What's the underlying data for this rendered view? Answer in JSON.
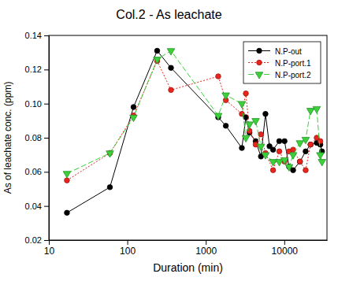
{
  "chart_data": {
    "type": "line",
    "title": "Col.2 - As leachate",
    "x_label": "Duration (min)",
    "y_label": "As of leachate conc. (ppm)",
    "log": "x",
    "grid": false,
    "legend": "top-right",
    "xlim": [
      10,
      35000
    ],
    "xticks": [
      10,
      100,
      1000,
      10000
    ],
    "ylim": [
      0.02,
      0.14
    ],
    "yticks": [
      0.02,
      0.04,
      0.06,
      0.08,
      {
        "value": 0.1,
        "label": "0.10"
      },
      0.12,
      0.14
    ],
    "series": [
      {
        "name": "N.P-out",
        "color": "#000000",
        "marker": "circle",
        "line_style": "solid",
        "x": [
          17,
          60,
          120,
          240,
          360,
          1440,
          1800,
          2880,
          3240,
          3600,
          4320,
          5040,
          5760,
          6480,
          7200,
          8640,
          10080,
          11520,
          12960,
          15840,
          18720,
          21600,
          25920,
          28800,
          30240
        ],
        "values": [
          0.036,
          0.051,
          0.098,
          0.131,
          0.121,
          0.092,
          0.087,
          0.074,
          0.092,
          0.083,
          0.078,
          0.069,
          0.094,
          0.075,
          0.073,
          0.078,
          0.078,
          0.063,
          0.061,
          0.066,
          0.072,
          0.076,
          0.077,
          0.076,
          0.072
        ]
      },
      {
        "name": "N.P-port.1",
        "color": "#e8241c",
        "marker": "circle",
        "line_style": "dotted",
        "x": [
          17,
          60,
          120,
          240,
          360,
          1440,
          1800,
          2880,
          3240,
          3600,
          4320,
          5040,
          5760,
          7200,
          8640,
          10080,
          11520,
          12960,
          15840,
          18720,
          21600,
          25920,
          28800
        ],
        "values": [
          0.055,
          0.071,
          0.093,
          0.125,
          0.108,
          0.116,
          0.102,
          0.094,
          0.106,
          0.084,
          0.076,
          0.082,
          0.071,
          0.061,
          0.072,
          0.066,
          0.072,
          0.073,
          0.066,
          0.061,
          0.076,
          0.08,
          0.078
        ]
      },
      {
        "name": "N.P-port.2",
        "color": "#3ad13a",
        "marker": "triangle-down",
        "line_style": "dashed",
        "x": [
          17,
          60,
          120,
          240,
          360,
          1440,
          1800,
          2880,
          3240,
          3600,
          4320,
          5040,
          5760,
          7200,
          8640,
          10080,
          11520,
          12960,
          15840,
          18720,
          21600,
          25920,
          28800,
          30240
        ],
        "values": [
          0.059,
          0.071,
          0.092,
          0.126,
          0.131,
          0.093,
          0.105,
          0.1,
          0.08,
          0.088,
          0.09,
          0.075,
          0.07,
          0.066,
          0.066,
          0.067,
          0.063,
          0.07,
          0.077,
          0.079,
          0.096,
          0.097,
          0.07,
          0.066
        ]
      }
    ]
  }
}
